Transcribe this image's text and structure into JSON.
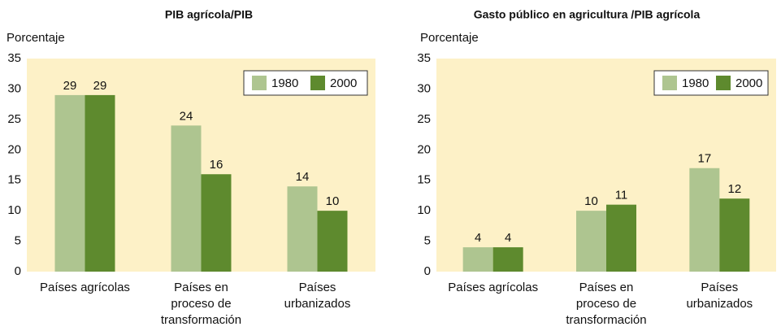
{
  "chart_data": [
    {
      "type": "bar",
      "title": "PIB agrícola/PIB",
      "y_label": "Porcentaje",
      "categories": [
        [
          "Países agrícolas"
        ],
        [
          "Países en",
          "proceso de",
          "transformación"
        ],
        [
          "Países",
          "urbanizados"
        ]
      ],
      "series": [
        {
          "name": "1980",
          "color": "#aec590",
          "values": [
            29,
            24,
            14
          ]
        },
        {
          "name": "2000",
          "color": "#5e8a2e",
          "values": [
            29,
            16,
            10
          ]
        }
      ],
      "ylim": [
        0,
        35
      ],
      "yticks": [
        0,
        5,
        10,
        15,
        20,
        25,
        30,
        35
      ],
      "legend": "upper right"
    },
    {
      "type": "bar",
      "title": "Gasto público en agricultura /PIB agrícola",
      "y_label": "Porcentaje",
      "categories": [
        [
          "Países agrícolas"
        ],
        [
          "Países en",
          "proceso de",
          "transformación"
        ],
        [
          "Países",
          "urbanizados"
        ]
      ],
      "series": [
        {
          "name": "1980",
          "color": "#aec590",
          "values": [
            4,
            10,
            17
          ]
        },
        {
          "name": "2000",
          "color": "#5e8a2e",
          "values": [
            4,
            11,
            12
          ]
        }
      ],
      "ylim": [
        0,
        35
      ],
      "yticks": [
        0,
        5,
        10,
        15,
        20,
        25,
        30,
        35
      ],
      "legend": "upper right"
    }
  ]
}
